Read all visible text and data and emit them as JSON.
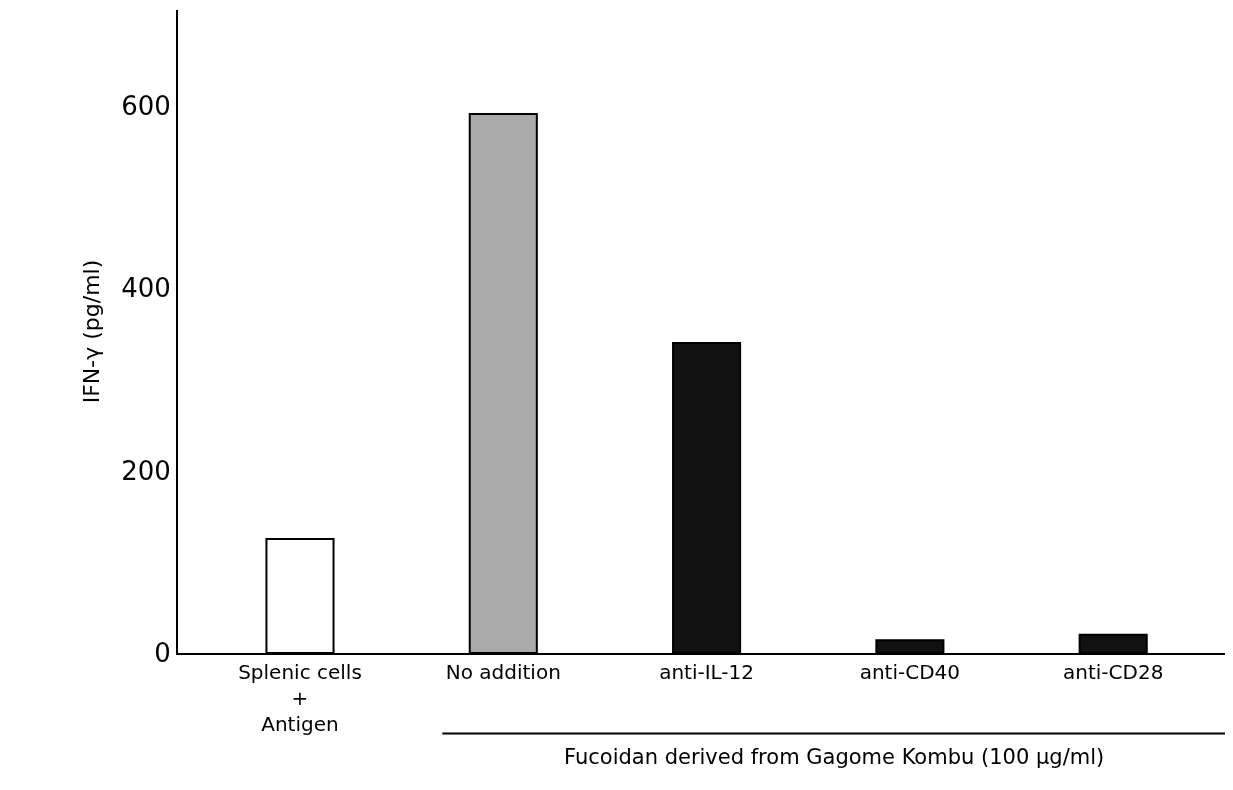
{
  "chart_data": {
    "type": "bar",
    "ylabel": "IFN-γ (pg/ml)",
    "categories": [
      "Splenic cells\n+\nAntigen",
      "No addition",
      "anti-IL-12",
      "anti-CD40",
      "anti-CD28"
    ],
    "values": [
      125,
      591,
      340,
      14,
      20
    ],
    "colors": [
      "#ffffff",
      "#aaaaaa",
      "#111111",
      "#111111",
      "#111111"
    ],
    "ylim": [
      0,
      705
    ],
    "yticks": [
      0,
      200,
      400,
      600
    ],
    "annotations": [
      "Fucoidan derived from Gagome Kombu (100 μg/ml)"
    ]
  }
}
